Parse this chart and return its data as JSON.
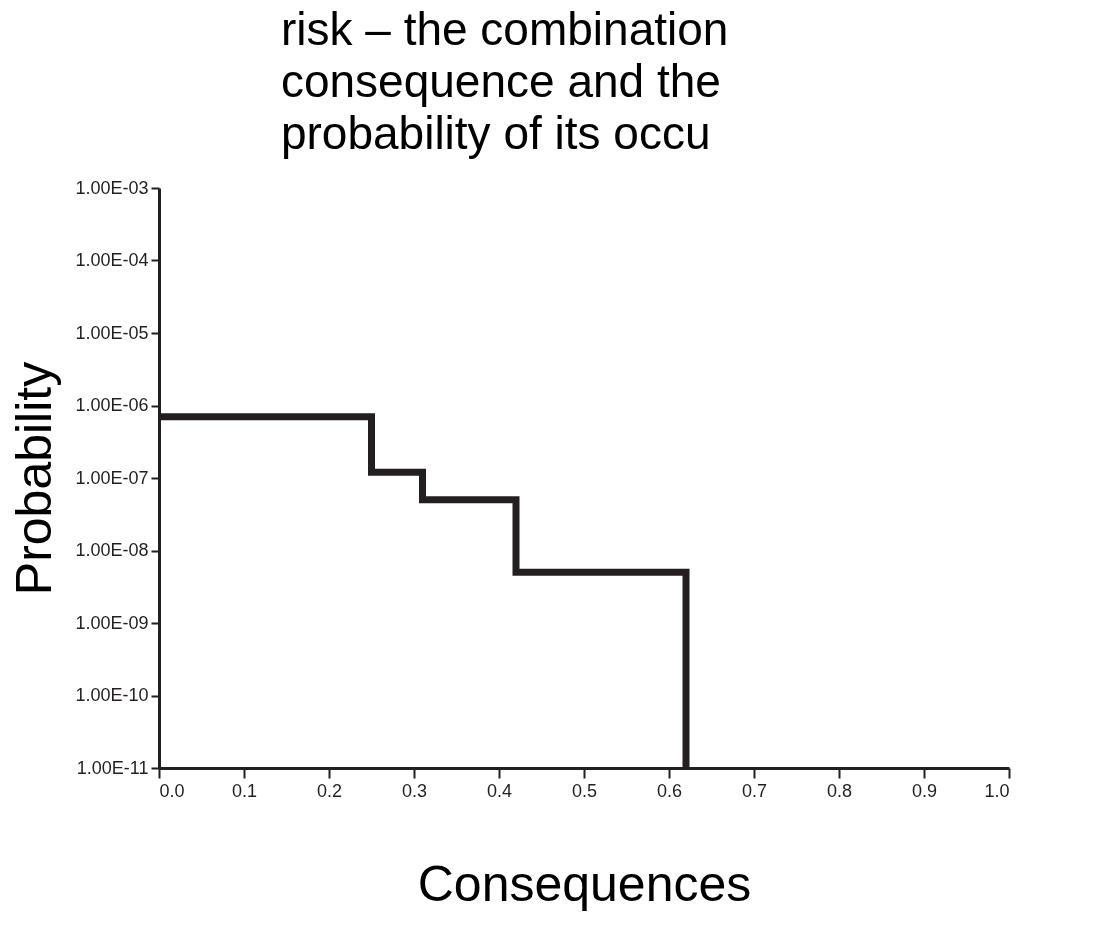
{
  "chart_data": {
    "type": "step",
    "title": "risk – the combination\nconsequence and the\nprobability of its occu",
    "xlabel": "Consequences",
    "ylabel": "Probability",
    "log": "y",
    "x": [
      0,
      0.25,
      0.31,
      0.42,
      0.62
    ],
    "series": [
      {
        "color": "#231f20",
        "values": [
          7e-07,
          1.2e-07,
          5e-08,
          5e-09,
          1e-11
        ]
      }
    ],
    "xlim": [
      0,
      1
    ],
    "xticks": [
      {
        "value": 0,
        "label": "0.0"
      },
      {
        "value": 0.1,
        "label": "0.1"
      },
      {
        "value": 0.2,
        "label": "0.2"
      },
      {
        "value": 0.3,
        "label": "0.3"
      },
      {
        "value": 0.4,
        "label": "0.4"
      },
      {
        "value": 0.5,
        "label": "0.5"
      },
      {
        "value": 0.6,
        "label": "0.6"
      },
      {
        "value": 0.7,
        "label": "0.7"
      },
      {
        "value": 0.8,
        "label": "0.8"
      },
      {
        "value": 0.9,
        "label": "0.9"
      },
      {
        "value": 1,
        "label": "1.0"
      }
    ],
    "ylim": [
      1e-11,
      0.001
    ],
    "yticks": [
      {
        "value": 1e-11,
        "label": "1.00E-11"
      },
      {
        "value": 1e-10,
        "label": "1.00E-10"
      },
      {
        "value": 1e-09,
        "label": "1.00E-09"
      },
      {
        "value": 1e-08,
        "label": "1.00E-08"
      },
      {
        "value": 1e-07,
        "label": "1.00E-07"
      },
      {
        "value": 1e-06,
        "label": "1.00E-06"
      },
      {
        "value": 1e-05,
        "label": "1.00E-05"
      },
      {
        "value": 0.0001,
        "label": "1.00E-04"
      },
      {
        "value": 0.001,
        "label": "1.00E-03"
      }
    ]
  }
}
